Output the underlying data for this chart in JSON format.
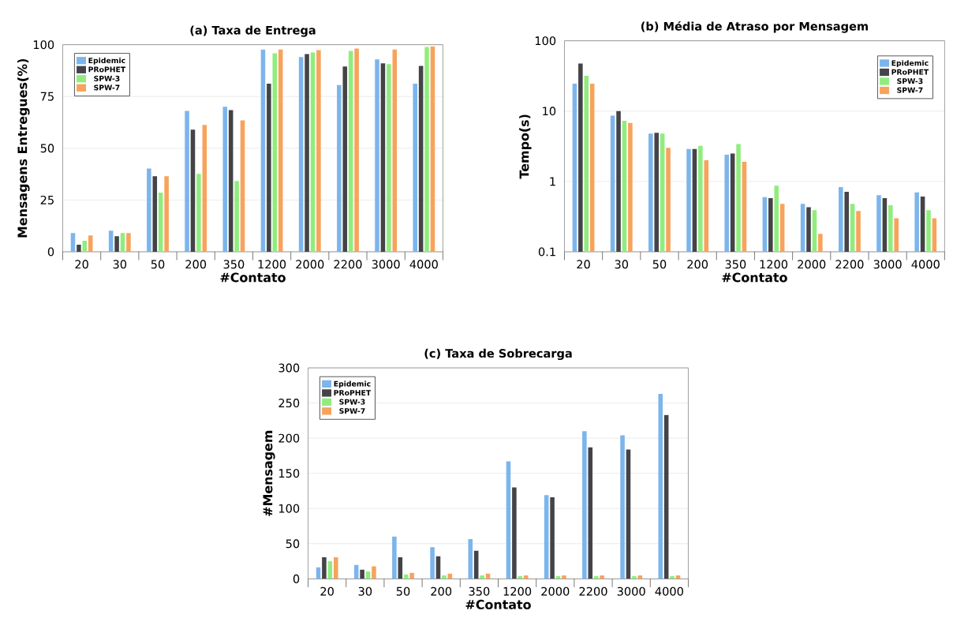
{
  "chart_data": [
    {
      "type": "bar",
      "title": "(a) Taxa de Entrega",
      "xlabel": "#Contato",
      "ylabel": "Mensagens Entregues(%)",
      "categories": [
        "20",
        "30",
        "50",
        "200",
        "350",
        "1200",
        "2000",
        "2200",
        "3000",
        "4000"
      ],
      "ylim": [
        0,
        100
      ],
      "yticks": [
        0,
        25,
        50,
        75,
        100
      ],
      "grid": "y",
      "legend": "top left",
      "series": [
        {
          "name": "Epidemic",
          "color": "#7cb5ec",
          "values": [
            9,
            10.2,
            40.2,
            68,
            70,
            97.7,
            94,
            80.5,
            92.9,
            81.2
          ]
        },
        {
          "name": "PRoPHET",
          "color": "#434348",
          "values": [
            3.4,
            7.5,
            36.5,
            59,
            68.4,
            81.2,
            95.5,
            89.5,
            91,
            89.8
          ]
        },
        {
          "name": "SPW-3",
          "color": "#90ed7d",
          "values": [
            5.3,
            9,
            28.6,
            37.6,
            34.2,
            95.9,
            96.2,
            97,
            90.6,
            98.9
          ]
        },
        {
          "name": "SPW-7",
          "color": "#f7a35c",
          "values": [
            7.9,
            9,
            36.5,
            61.3,
            63.5,
            97.7,
            97.4,
            98.1,
            97.7,
            99.2
          ]
        }
      ]
    },
    {
      "type": "bar",
      "title": "(b) Média de Atraso por Mensagem",
      "xlabel": "#Contato",
      "ylabel": "Tempo(s)",
      "categories": [
        "20",
        "30",
        "50",
        "200",
        "350",
        "1200",
        "2000",
        "2200",
        "3000",
        "4000"
      ],
      "ylim": [
        0.1,
        100
      ],
      "yticks": [
        0.1,
        1,
        10,
        100
      ],
      "log": true,
      "grid": "y",
      "legend": "top right",
      "series": [
        {
          "name": "Epidemic",
          "color": "#7cb5ec",
          "values": [
            24.5,
            8.6,
            4.8,
            2.9,
            2.4,
            0.6,
            0.48,
            0.83,
            0.64,
            0.7
          ]
        },
        {
          "name": "PRoPHET",
          "color": "#434348",
          "values": [
            47.6,
            10,
            4.9,
            2.9,
            2.5,
            0.58,
            0.43,
            0.71,
            0.58,
            0.61
          ]
        },
        {
          "name": "SPW-3",
          "color": "#90ed7d",
          "values": [
            31.8,
            7.3,
            4.8,
            3.2,
            3.4,
            0.87,
            0.39,
            0.48,
            0.46,
            0.39
          ]
        },
        {
          "name": "SPW-7",
          "color": "#f7a35c",
          "values": [
            24.5,
            6.8,
            3.0,
            2.0,
            1.9,
            0.48,
            0.18,
            0.38,
            0.3,
            0.3
          ]
        }
      ]
    },
    {
      "type": "bar",
      "title": "(c) Taxa de Sobrecarga",
      "xlabel": "#Contato",
      "ylabel": "#Mensagem",
      "categories": [
        "20",
        "30",
        "50",
        "200",
        "350",
        "1200",
        "2000",
        "2200",
        "3000",
        "4000"
      ],
      "ylim": [
        0,
        300
      ],
      "yticks": [
        0,
        50,
        100,
        150,
        200,
        250,
        300
      ],
      "grid": "y",
      "legend": "top left",
      "series": [
        {
          "name": "Epidemic",
          "color": "#7cb5ec",
          "values": [
            16.5,
            19.6,
            60,
            45,
            56.5,
            167,
            119,
            210,
            204,
            263
          ]
        },
        {
          "name": "PRoPHET",
          "color": "#434348",
          "values": [
            30.6,
            13,
            30.6,
            32,
            40,
            130,
            116,
            187,
            184,
            233
          ]
        },
        {
          "name": "SPW-3",
          "color": "#90ed7d",
          "values": [
            25,
            10.6,
            6.3,
            5,
            5,
            4,
            4,
            4,
            4,
            4
          ]
        },
        {
          "name": "SPW-7",
          "color": "#f7a35c",
          "values": [
            30.6,
            17.7,
            8.6,
            7.5,
            7.5,
            5,
            5,
            5,
            5,
            5
          ]
        }
      ]
    }
  ]
}
